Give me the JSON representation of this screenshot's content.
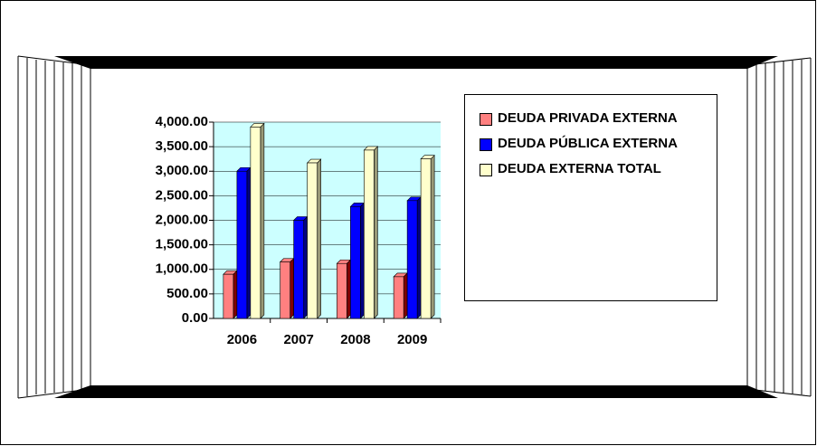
{
  "chart_data": {
    "type": "bar",
    "categories": [
      "2006",
      "2007",
      "2008",
      "2009"
    ],
    "series": [
      {
        "name": "DEUDA PRIVADA EXTERNA",
        "color": "#ff8080",
        "values": [
          900,
          1150,
          1120,
          850
        ]
      },
      {
        "name": "DEUDA PÚBLICA EXTERNA",
        "color": "#0000ff",
        "values": [
          3000,
          2000,
          2280,
          2400
        ]
      },
      {
        "name": "DEUDA EXTERNA TOTAL",
        "color": "#ffffcc",
        "values": [
          3900,
          3170,
          3430,
          3250
        ]
      }
    ],
    "ylim": [
      0,
      4000
    ],
    "yticks": [
      {
        "value": 0,
        "label": "0.00"
      },
      {
        "value": 500,
        "label": "500.00"
      },
      {
        "value": 1000,
        "label": "1,000.00"
      },
      {
        "value": 1500,
        "label": "1,500.00"
      },
      {
        "value": 2000,
        "label": "2,000.00"
      },
      {
        "value": 2500,
        "label": "2,500.00"
      },
      {
        "value": 3000,
        "label": "3,000.00"
      },
      {
        "value": 3500,
        "label": "3,500.00"
      },
      {
        "value": 4000,
        "label": "4,000.00"
      }
    ],
    "grid": true
  }
}
